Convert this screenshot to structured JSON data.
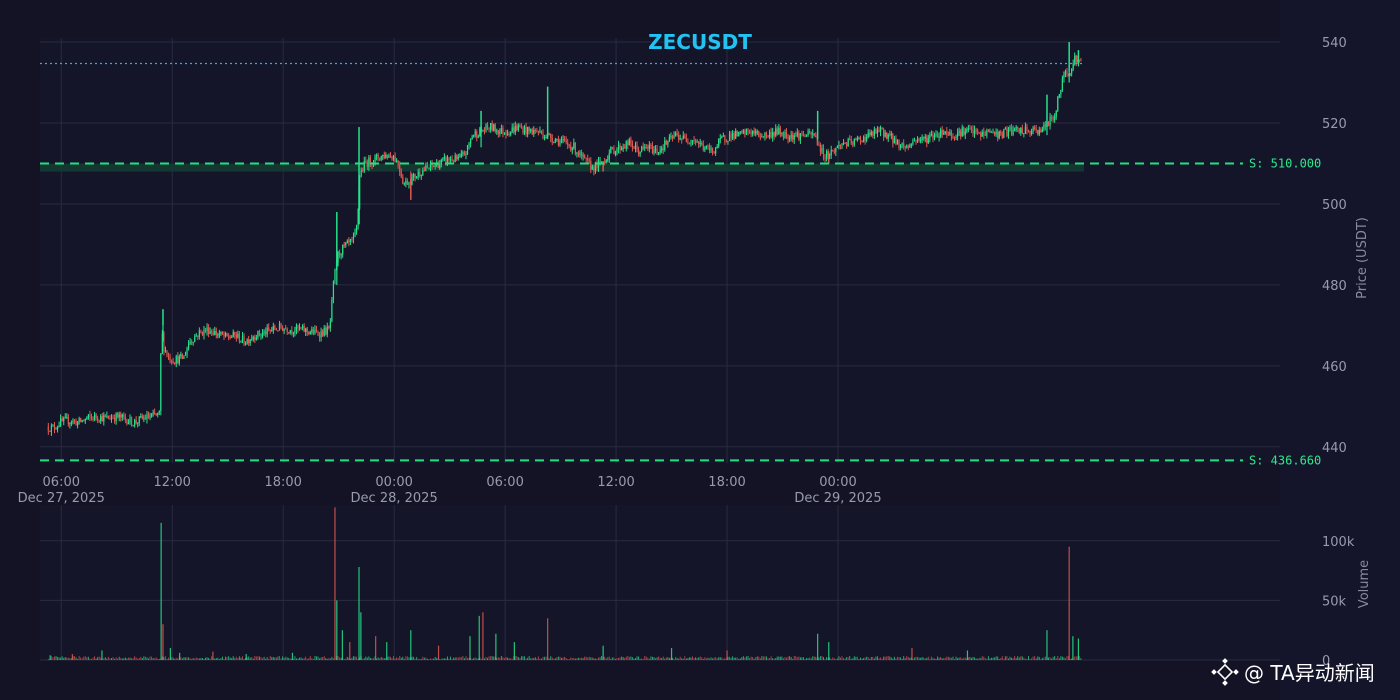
{
  "chart_data": {
    "type": "candlestick",
    "title": "ZECUSDT",
    "price_axis": {
      "label": "Price (USDT)",
      "ticks": [
        440,
        460,
        480,
        500,
        520,
        540
      ],
      "range": [
        436,
        541
      ]
    },
    "volume_axis": {
      "label": "Volume",
      "ticks": [
        0,
        50000,
        100000
      ],
      "tick_labels": [
        "0",
        "50k",
        "100k"
      ],
      "range": [
        0,
        130000
      ]
    },
    "x_axis": {
      "range_hours": [
        -1.15,
        65.9
      ],
      "ticks": [
        {
          "hour": 0,
          "label": "06:00",
          "sub": "Dec 27, 2025"
        },
        {
          "hour": 6,
          "label": "12:00",
          "sub": ""
        },
        {
          "hour": 12,
          "label": "18:00",
          "sub": ""
        },
        {
          "hour": 18,
          "label": "00:00",
          "sub": "Dec 28, 2025"
        },
        {
          "hour": 24,
          "label": "06:00",
          "sub": ""
        },
        {
          "hour": 30,
          "label": "12:00",
          "sub": ""
        },
        {
          "hour": 36,
          "label": "18:00",
          "sub": ""
        },
        {
          "hour": 42,
          "label": "00:00",
          "sub": "Dec 29, 2025"
        }
      ]
    },
    "support_levels": [
      {
        "label": "S: 510.000",
        "value": 510.0
      },
      {
        "label": "S: 436.660",
        "value": 436.66
      }
    ],
    "support_zone": [
      508,
      510
    ],
    "current_price_line": 534.7,
    "price_path": [
      [
        -0.7,
        445
      ],
      [
        -0.4,
        444.5
      ],
      [
        0,
        446
      ],
      [
        0.5,
        446.5
      ],
      [
        1,
        446
      ],
      [
        1.5,
        447
      ],
      [
        2,
        447.5
      ],
      [
        2.5,
        447
      ],
      [
        3,
        447.5
      ],
      [
        3.5,
        447
      ],
      [
        4,
        446
      ],
      [
        4.5,
        447
      ],
      [
        5,
        447.5
      ],
      [
        5.4,
        448
      ],
      [
        5.5,
        470
      ],
      [
        5.6,
        465
      ],
      [
        5.9,
        462
      ],
      [
        6.2,
        461.5
      ],
      [
        6.7,
        462
      ],
      [
        7,
        466
      ],
      [
        7.5,
        468
      ],
      [
        8,
        469
      ],
      [
        8.5,
        468
      ],
      [
        9,
        467
      ],
      [
        9.5,
        467.5
      ],
      [
        10,
        466
      ],
      [
        10.5,
        467.5
      ],
      [
        11,
        468
      ],
      [
        11.5,
        469
      ],
      [
        12,
        469.5
      ],
      [
        12.5,
        469
      ],
      [
        13,
        469
      ],
      [
        13.5,
        468.5
      ],
      [
        14,
        468
      ],
      [
        14.6,
        469
      ],
      [
        14.8,
        480
      ],
      [
        15,
        487
      ],
      [
        15.3,
        489
      ],
      [
        15.6,
        490
      ],
      [
        15.9,
        491
      ],
      [
        16.1,
        495
      ],
      [
        16.2,
        507
      ],
      [
        16.5,
        510
      ],
      [
        17,
        511
      ],
      [
        17.5,
        512
      ],
      [
        18,
        512
      ],
      [
        18.3,
        510
      ],
      [
        18.6,
        505
      ],
      [
        19,
        506
      ],
      [
        19.5,
        508
      ],
      [
        20,
        509
      ],
      [
        20.5,
        510
      ],
      [
        21,
        511
      ],
      [
        21.6,
        511
      ],
      [
        22,
        513
      ],
      [
        22.3,
        517
      ],
      [
        22.8,
        518
      ],
      [
        23.3,
        519
      ],
      [
        23.8,
        518
      ],
      [
        24.3,
        518
      ],
      [
        24.8,
        519
      ],
      [
        25.3,
        518
      ],
      [
        25.8,
        518
      ],
      [
        26.3,
        517
      ],
      [
        26.8,
        516
      ],
      [
        27.3,
        515
      ],
      [
        27.8,
        514
      ],
      [
        28.3,
        511
      ],
      [
        28.8,
        509
      ],
      [
        29.3,
        510
      ],
      [
        29.8,
        513
      ],
      [
        30.3,
        514
      ],
      [
        30.8,
        515
      ],
      [
        31.3,
        513
      ],
      [
        31.8,
        514
      ],
      [
        32.3,
        513
      ],
      [
        32.8,
        515
      ],
      [
        33.3,
        517
      ],
      [
        33.8,
        516
      ],
      [
        34.3,
        516
      ],
      [
        34.8,
        514
      ],
      [
        35.3,
        513
      ],
      [
        35.8,
        516
      ],
      [
        36.3,
        517
      ],
      [
        36.8,
        517
      ],
      [
        37.3,
        518
      ],
      [
        37.8,
        517
      ],
      [
        38.3,
        517
      ],
      [
        38.8,
        518
      ],
      [
        39.3,
        517
      ],
      [
        39.8,
        517
      ],
      [
        40.3,
        517
      ],
      [
        40.8,
        517
      ],
      [
        41.3,
        512
      ],
      [
        41.8,
        513
      ],
      [
        42.3,
        515
      ],
      [
        42.8,
        515
      ],
      [
        43.3,
        516
      ],
      [
        43.8,
        517
      ],
      [
        44.3,
        518
      ],
      [
        44.8,
        517
      ],
      [
        45.3,
        515
      ],
      [
        45.8,
        514
      ],
      [
        46.3,
        516
      ],
      [
        46.8,
        516
      ],
      [
        47.3,
        517
      ],
      [
        47.8,
        518
      ],
      [
        48.3,
        517
      ],
      [
        48.8,
        518
      ],
      [
        49.3,
        518
      ],
      [
        49.8,
        517
      ],
      [
        50.3,
        518
      ],
      [
        50.8,
        517
      ],
      [
        51.3,
        518
      ],
      [
        51.8,
        518
      ],
      [
        52.3,
        518
      ],
      [
        52.8,
        518
      ],
      [
        53.3,
        519
      ],
      [
        53.8,
        522
      ],
      [
        54.1,
        528
      ],
      [
        54.3,
        532
      ],
      [
        54.6,
        533
      ],
      [
        54.9,
        536
      ],
      [
        55.15,
        535
      ]
    ],
    "spikes": [
      [
        5.5,
        474,
        466
      ],
      [
        14.9,
        498,
        480
      ],
      [
        16.1,
        519,
        504
      ],
      [
        18.9,
        501,
        508
      ],
      [
        22.7,
        523,
        514
      ],
      [
        26.3,
        529,
        516
      ],
      [
        29.3,
        508,
        510
      ],
      [
        40.9,
        523,
        516
      ],
      [
        41.5,
        510,
        513
      ],
      [
        53.3,
        527,
        517
      ],
      [
        54.5,
        540,
        530
      ],
      [
        55.0,
        538,
        534
      ]
    ],
    "volume_spikes": [
      [
        -0.6,
        4000
      ],
      [
        0.6,
        5000
      ],
      [
        2.2,
        8000
      ],
      [
        5.4,
        115000
      ],
      [
        5.5,
        30000
      ],
      [
        5.9,
        10000
      ],
      [
        6.4,
        6000
      ],
      [
        8.2,
        7000
      ],
      [
        10,
        5000
      ],
      [
        12.5,
        6000
      ],
      [
        14.8,
        128000
      ],
      [
        14.9,
        50000
      ],
      [
        15.2,
        25000
      ],
      [
        15.6,
        15000
      ],
      [
        16.1,
        78000
      ],
      [
        16.2,
        40000
      ],
      [
        17,
        20000
      ],
      [
        17.6,
        15000
      ],
      [
        18.9,
        25000
      ],
      [
        20.4,
        12000
      ],
      [
        22.1,
        20000
      ],
      [
        22.6,
        37000
      ],
      [
        22.8,
        40000
      ],
      [
        23.5,
        22000
      ],
      [
        24.5,
        15000
      ],
      [
        26.3,
        35000
      ],
      [
        29.3,
        12000
      ],
      [
        33,
        10000
      ],
      [
        36,
        8000
      ],
      [
        40.9,
        22000
      ],
      [
        41.5,
        15000
      ],
      [
        46,
        10000
      ],
      [
        49,
        8000
      ],
      [
        53.3,
        25000
      ],
      [
        54.5,
        95000
      ],
      [
        54.7,
        20000
      ],
      [
        55.0,
        18000
      ]
    ]
  },
  "watermark": {
    "text": "@ TA异动新闻",
    "icon": "binance-logo-icon"
  },
  "colors": {
    "background": "#131325",
    "plot_bg": "#15152a",
    "grid": "#2a2a40",
    "up": "#26e38a",
    "down": "#e0584f",
    "support": "#22e07e",
    "support_zone": "#143d33",
    "current_line": "#3aa7e0",
    "title": "#22c3f3"
  }
}
